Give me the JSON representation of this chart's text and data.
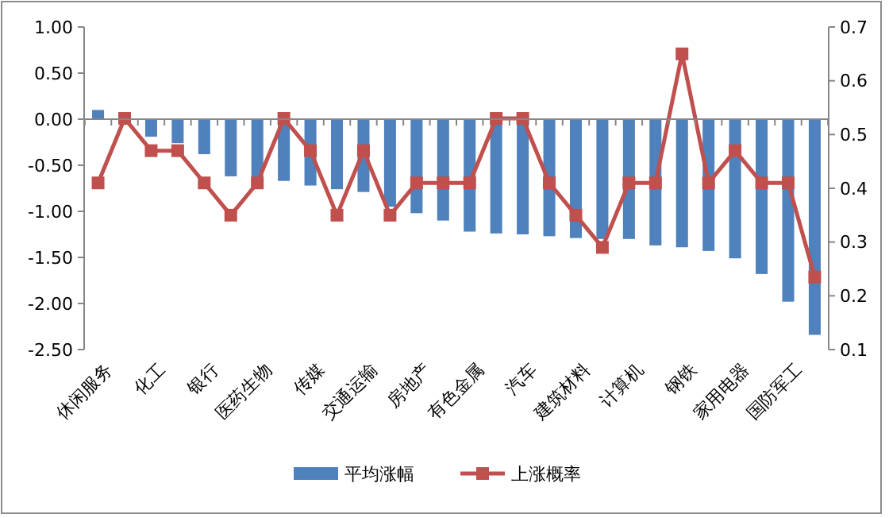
{
  "chart_data": {
    "type": "bar",
    "categories": [
      "休闲服务",
      null,
      "化工",
      null,
      "银行",
      null,
      "医药生物",
      null,
      "传媒",
      null,
      "交通运输",
      null,
      "房地产",
      null,
      "有色金属",
      null,
      "汽车",
      null,
      "建筑材料",
      null,
      "计算机",
      null,
      "钢铁",
      null,
      "家用电器",
      null,
      "国防军工",
      null
    ],
    "series": [
      {
        "name": "平均涨幅",
        "color": "#4f81bd",
        "values": [
          0.1,
          -0.01,
          -0.19,
          -0.26,
          -0.38,
          -0.62,
          -0.65,
          -0.67,
          -0.72,
          -0.76,
          -0.79,
          -0.95,
          -1.02,
          -1.1,
          -1.22,
          -1.24,
          -1.25,
          -1.27,
          -1.29,
          -1.3,
          -1.3,
          -1.37,
          -1.39,
          -1.43,
          -1.51,
          -1.68,
          -1.98,
          -2.34
        ]
      },
      {
        "name": "上涨概率",
        "type": "line",
        "axis": "y2",
        "color": "#c0504d",
        "values": [
          0.41,
          0.53,
          0.47,
          0.47,
          0.41,
          0.35,
          0.41,
          0.53,
          0.47,
          0.35,
          0.47,
          0.35,
          0.41,
          0.41,
          0.41,
          0.53,
          0.53,
          0.41,
          0.35,
          0.29,
          0.41,
          0.41,
          0.65,
          0.41,
          0.47,
          0.41,
          0.41,
          0.235
        ]
      }
    ],
    "ylim": [
      -2.5,
      1
    ],
    "yticks": [
      {
        "value": 1,
        "label": "1.00"
      },
      {
        "value": 0.5,
        "label": "0.50"
      },
      {
        "value": 0,
        "label": "0.00"
      },
      {
        "value": -0.5,
        "label": "-0.50"
      },
      {
        "value": -1,
        "label": "-1.00"
      },
      {
        "value": -1.5,
        "label": "-1.50"
      },
      {
        "value": -2,
        "label": "-2.00"
      },
      {
        "value": -2.5,
        "label": "-2.50"
      }
    ],
    "y2lim": [
      0.1,
      0.7
    ],
    "y2ticks": [
      0.1,
      0.2,
      0.3,
      0.4,
      0.5,
      0.6,
      0.7
    ],
    "marker": "square",
    "legend": "bottom"
  }
}
